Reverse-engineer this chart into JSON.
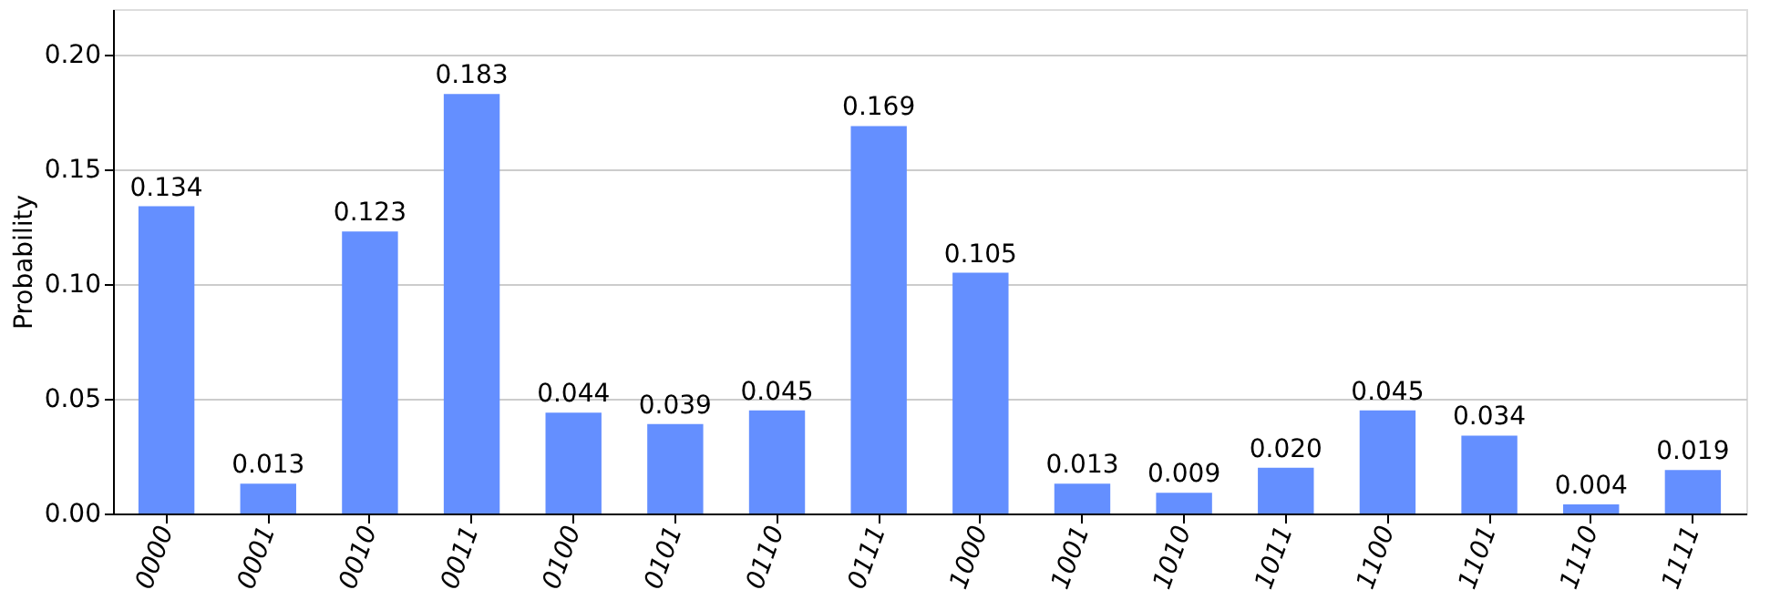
{
  "chart_data": {
    "type": "bar",
    "ylabel": "Probability",
    "categories": [
      "0000",
      "0001",
      "0010",
      "0011",
      "0100",
      "0101",
      "0110",
      "0111",
      "1000",
      "1001",
      "1010",
      "1011",
      "1100",
      "1101",
      "1110",
      "1111"
    ],
    "values": [
      0.134,
      0.013,
      0.123,
      0.183,
      0.044,
      0.039,
      0.045,
      0.169,
      0.105,
      0.013,
      0.009,
      0.02,
      0.045,
      0.034,
      0.004,
      0.019
    ],
    "value_labels": [
      "0.134",
      "0.013",
      "0.123",
      "0.183",
      "0.044",
      "0.039",
      "0.045",
      "0.169",
      "0.105",
      "0.013",
      "0.009",
      "0.020",
      "0.045",
      "0.034",
      "0.004",
      "0.019"
    ],
    "color": "#648fff",
    "ylim": [
      0,
      0.22
    ],
    "yticks": [
      {
        "value": 0,
        "label": "0.00"
      },
      0.05,
      {
        "value": 0.1,
        "label": "0.10"
      },
      0.15,
      {
        "value": 0.2,
        "label": "0.20"
      }
    ],
    "grid": "y"
  }
}
